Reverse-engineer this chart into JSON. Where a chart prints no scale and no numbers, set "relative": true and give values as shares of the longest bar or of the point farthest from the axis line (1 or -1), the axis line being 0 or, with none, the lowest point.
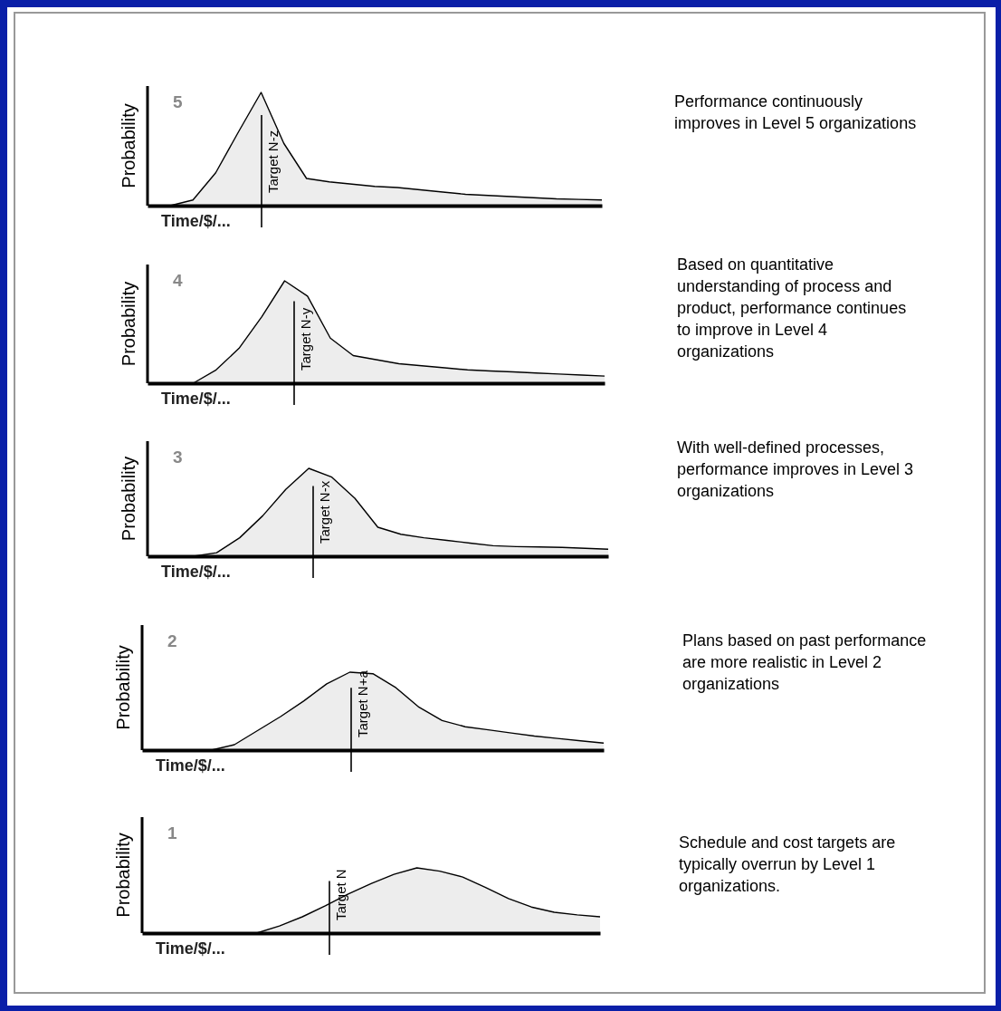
{
  "chart_data": [
    {
      "type": "area",
      "relative": true,
      "ylabel": "Probability",
      "xlabel": "Time/$/...",
      "color": "#000000",
      "categories": [
        null,
        null,
        null,
        null,
        null,
        null,
        null,
        null,
        null,
        null,
        null,
        null,
        null,
        null,
        null,
        null,
        null,
        null,
        null,
        null,
        null
      ],
      "values": [
        null,
        0,
        0.05,
        0.29,
        0.65,
        1,
        0.55,
        0.24,
        0.21,
        0.19,
        0.17,
        0.16,
        0.14,
        0.12,
        0.1,
        0.09,
        0.08,
        0.07,
        0.06,
        0.055,
        0.05
      ],
      "ref_lines": [
        {
          "axis": "x",
          "label": "Target N-z"
        }
      ],
      "annotations": [
        "5",
        "Performance continuously improves in Level 5 organizations"
      ]
    },
    {
      "type": "area",
      "relative": true,
      "ylabel": "Probability",
      "xlabel": "Time/$/...",
      "color": "#000000",
      "categories": [
        null,
        null,
        null,
        null,
        null,
        null,
        null,
        null,
        null,
        null,
        null,
        null,
        null,
        null,
        null,
        null,
        null,
        null,
        null,
        null,
        null
      ],
      "values": [
        null,
        null,
        0,
        0.13,
        0.34,
        0.65,
        1,
        0.85,
        0.44,
        0.27,
        0.23,
        0.19,
        0.17,
        0.15,
        0.13,
        0.12,
        0.11,
        0.1,
        0.09,
        0.08,
        0.07
      ],
      "ref_lines": [
        {
          "axis": "x",
          "label": "Target N-y"
        }
      ],
      "annotations": [
        "4",
        "Based on quantitative understanding of process and product, performance continues to improve in Level 4 organizations"
      ]
    },
    {
      "type": "area",
      "relative": true,
      "ylabel": "Probability",
      "xlabel": "Time/$/...",
      "color": "#000000",
      "categories": [
        null,
        null,
        null,
        null,
        null,
        null,
        null,
        null,
        null,
        null,
        null,
        null,
        null,
        null,
        null,
        null,
        null,
        null,
        null,
        null,
        null
      ],
      "values": [
        null,
        null,
        0,
        0.04,
        0.21,
        0.46,
        0.76,
        1,
        0.9,
        0.66,
        0.33,
        0.25,
        0.21,
        0.18,
        0.15,
        0.12,
        0.11,
        0.105,
        0.1,
        0.09,
        0.08
      ],
      "ref_lines": [
        {
          "axis": "x",
          "label": "Target N-x"
        }
      ],
      "annotations": [
        "3",
        "With well-defined processes, performance improves in Level 3 organizations"
      ]
    },
    {
      "type": "area",
      "relative": true,
      "ylabel": "Probability",
      "xlabel": "Time/$/...",
      "color": "#000000",
      "categories": [
        null,
        null,
        null,
        null,
        null,
        null,
        null,
        null,
        null,
        null,
        null,
        null,
        null,
        null,
        null,
        null,
        null,
        null,
        null,
        null,
        null
      ],
      "values": [
        null,
        null,
        null,
        0,
        0.07,
        0.25,
        0.43,
        0.63,
        0.85,
        1,
        0.98,
        0.8,
        0.55,
        0.38,
        0.3,
        0.26,
        0.22,
        0.18,
        0.15,
        0.12,
        0.09
      ],
      "ref_lines": [
        {
          "axis": "x",
          "label": "Target N+a"
        }
      ],
      "annotations": [
        "2",
        "Plans based on past performance are more realistic in Level 2 organizations"
      ]
    },
    {
      "type": "area",
      "relative": true,
      "ylabel": "Probability",
      "xlabel": "Time/$/...",
      "color": "#000000",
      "categories": [
        null,
        null,
        null,
        null,
        null,
        null,
        null,
        null,
        null,
        null,
        null,
        null,
        null,
        null,
        null,
        null,
        null,
        null,
        null,
        null,
        null
      ],
      "values": [
        null,
        null,
        null,
        null,
        null,
        0,
        0.11,
        0.25,
        0.42,
        0.6,
        0.76,
        0.9,
        1,
        0.95,
        0.86,
        0.7,
        0.53,
        0.4,
        0.32,
        0.28,
        0.25
      ],
      "ref_lines": [
        {
          "axis": "x",
          "label": "Target N"
        }
      ],
      "annotations": [
        "1",
        "Schedule and cost targets are typically overrun by Level 1 organizations."
      ]
    }
  ]
}
